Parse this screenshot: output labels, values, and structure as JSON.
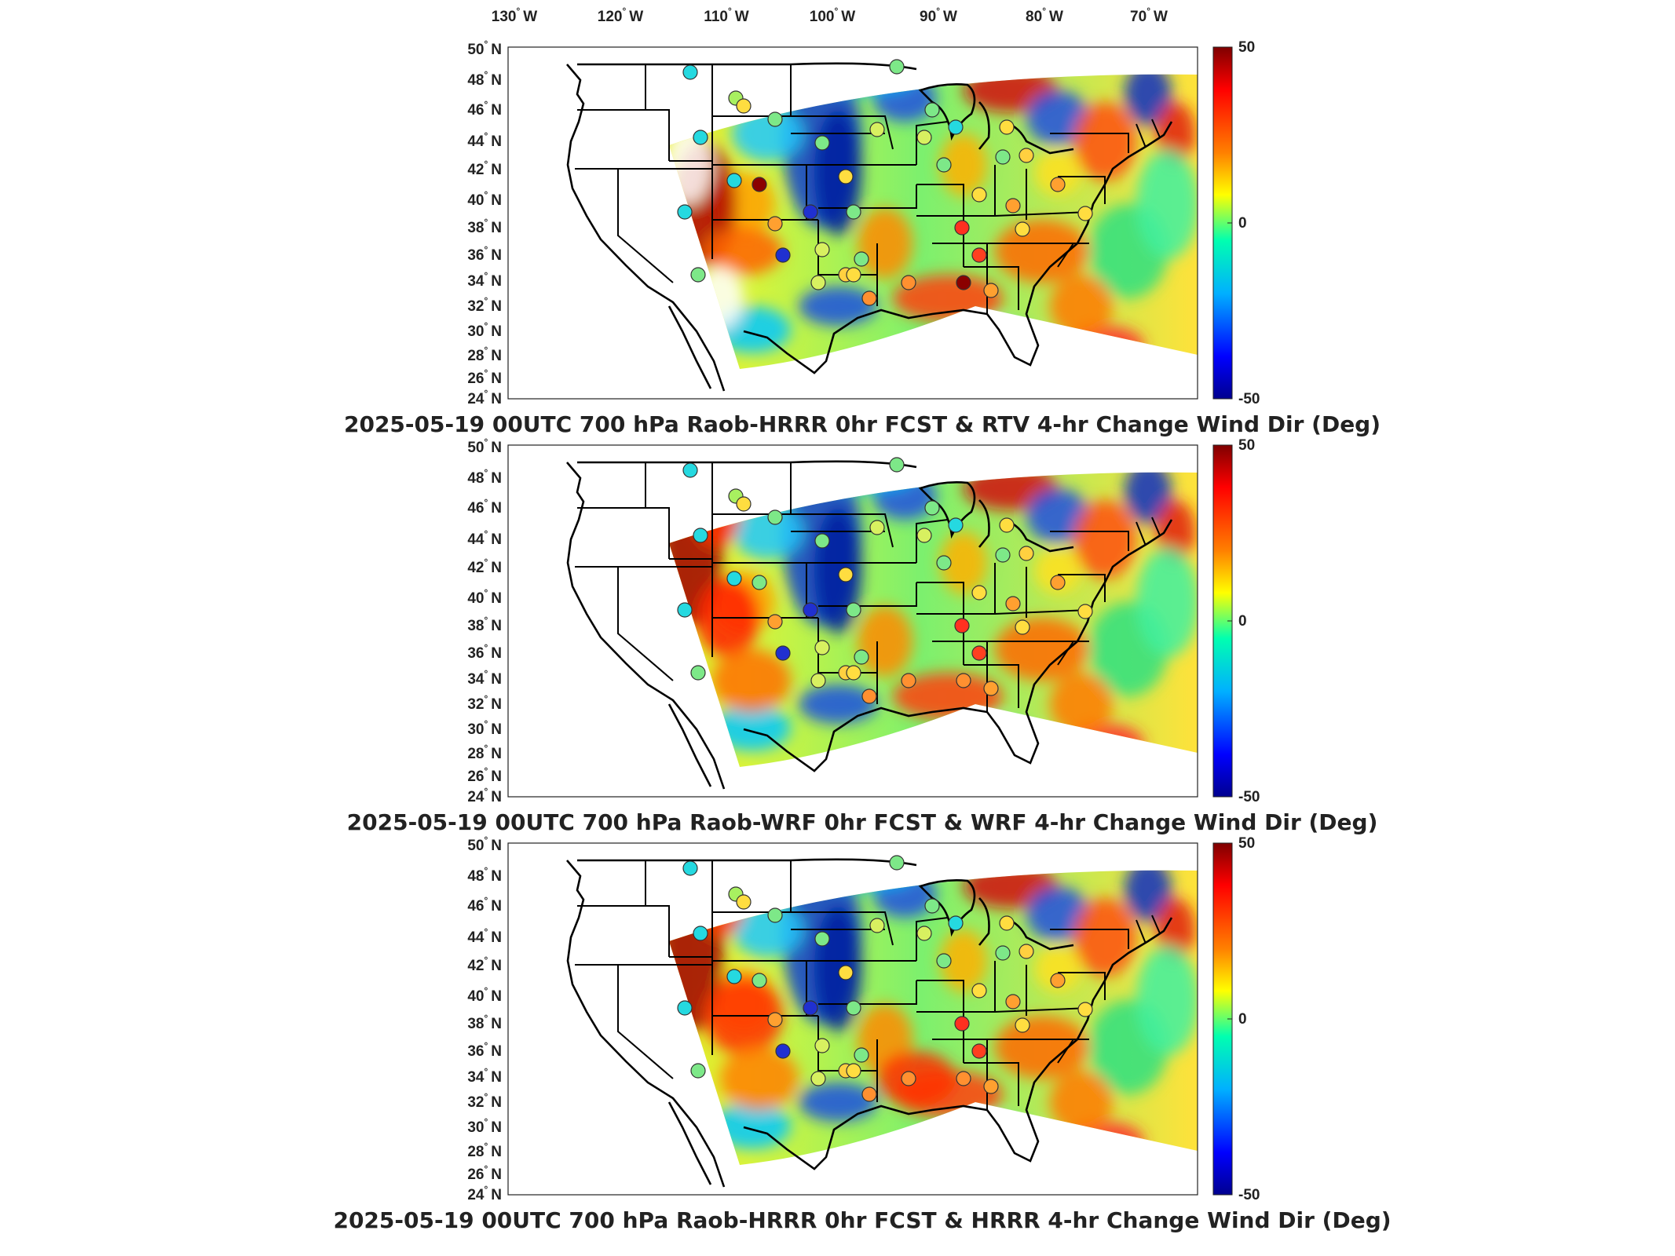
{
  "figure": {
    "lon_labels": [
      "130",
      "120",
      "110",
      "100",
      "90",
      "80",
      "70"
    ],
    "lon_hemisphere": "W",
    "lat_labels": [
      "50",
      "48",
      "46",
      "44",
      "42",
      "40",
      "38",
      "36",
      "34",
      "32",
      "30",
      "28",
      "26",
      "24"
    ],
    "lat_hemisphere": "N",
    "degree_symbol": "°",
    "colorbar_ticks": [
      "50",
      "0",
      "-50"
    ],
    "colorbar_range": [
      -50,
      50
    ],
    "colormap": "jet",
    "colorbar_colors": [
      "#7f0000",
      "#ff0000",
      "#ff8000",
      "#ffff00",
      "#00ffb0",
      "#00b0ff",
      "#0000ff",
      "#00008f"
    ],
    "land_outline_color": "#000000",
    "missing_data_color": "#ffffff",
    "panels": [
      {
        "title": "2025-05-19 00UTC 700 hPa Raob-HRRR 0hr FCST & RTV 4-hr Change Wind Dir (Deg)"
      },
      {
        "title": "2025-05-19 00UTC 700 hPa Raob-WRF 0hr FCST & WRF 4-hr Change Wind Dir (Deg)"
      },
      {
        "title": "2025-05-19 00UTC 700 hPa Raob-HRRR 0hr FCST & HRRR 4-hr Change Wind Dir (Deg)"
      }
    ]
  }
}
